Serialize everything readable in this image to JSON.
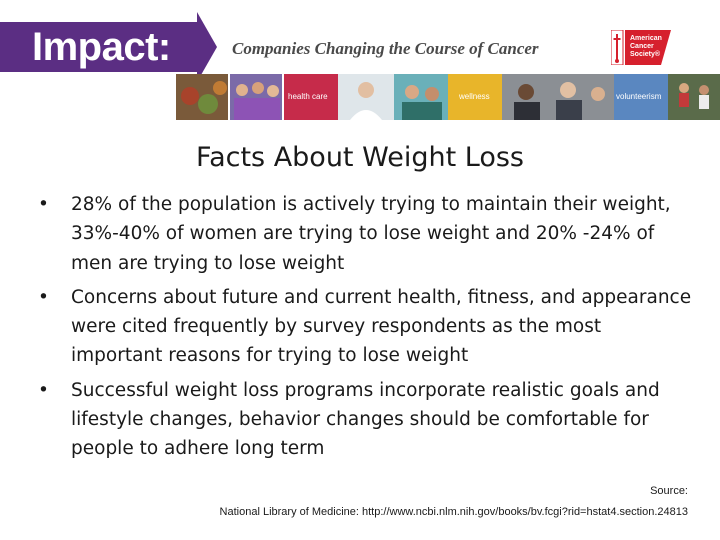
{
  "header": {
    "brand": "Impact:",
    "tagline": "Companies Changing the Course of Cancer",
    "logo": {
      "icon": "american-cancer-society-sword-icon",
      "lines": [
        "American",
        "Cancer",
        "Society®"
      ],
      "color": "#d6202d"
    },
    "accent_color": "#5b2e83"
  },
  "photo_strip": {
    "labels": [
      "health care",
      "wellness",
      "volunteerism"
    ]
  },
  "slide": {
    "title": "Facts About Weight Loss",
    "bullet_glyph": "•",
    "bullets": [
      "28% of the population is actively trying to maintain their weight, 33%-40% of women are trying to lose weight and 20% -24% of men are trying to lose weight",
      "Concerns about future and current health, fitness, and appearance were cited frequently by survey respondents as the most important reasons for trying to lose weight",
      "Successful weight loss programs incorporate realistic goals and lifestyle changes, behavior changes should be comfortable for people to adhere long term"
    ]
  },
  "source": {
    "label": "Source:",
    "text": "National Library of Medicine: http://www.ncbi.nlm.nih.gov/books/bv.fcgi?rid=hstat4.section.24813"
  }
}
